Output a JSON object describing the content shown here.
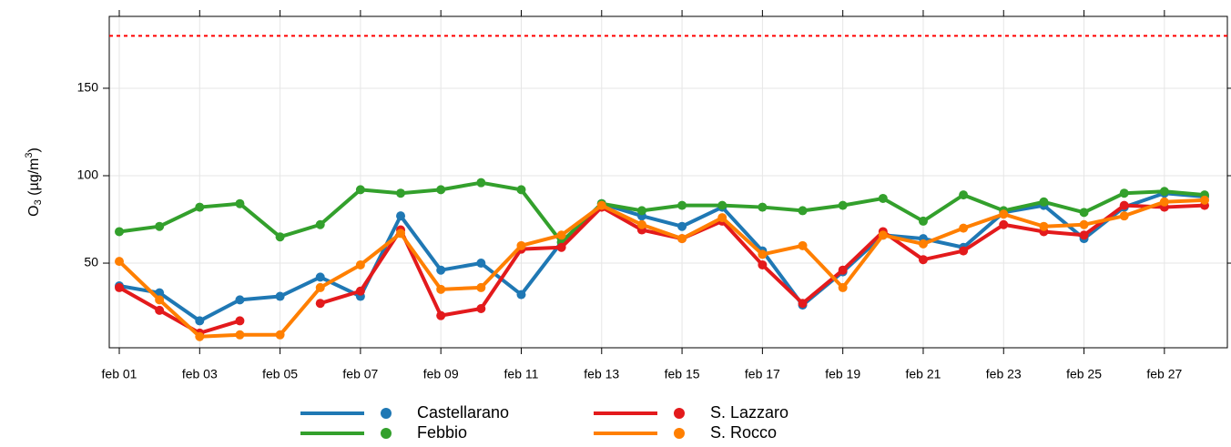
{
  "chart_data": {
    "type": "line",
    "ylabel_parts": [
      "O",
      "3",
      " (µg/m",
      "3",
      ")"
    ],
    "categories": [
      "feb 01",
      null,
      "feb 03",
      null,
      "feb 05",
      null,
      "feb 07",
      null,
      "feb 09",
      null,
      "feb 11",
      null,
      "feb 13",
      null,
      "feb 15",
      null,
      "feb 17",
      null,
      "feb 19",
      null,
      "feb 21",
      null,
      "feb 23",
      null,
      "feb 25",
      null,
      "feb 27",
      null
    ],
    "series": [
      {
        "name": "Castellarano",
        "color": "#1f78b4",
        "values": [
          37,
          33,
          17,
          29,
          31,
          42,
          31,
          77,
          46,
          50,
          32,
          62,
          84,
          77,
          71,
          82,
          57,
          26,
          45,
          66,
          64,
          59,
          79,
          83,
          64,
          82,
          90,
          88
        ]
      },
      {
        "name": "Febbio",
        "color": "#33a02c",
        "values": [
          68,
          71,
          82,
          84,
          65,
          72,
          92,
          90,
          92,
          96,
          92,
          62,
          84,
          80,
          83,
          83,
          82,
          80,
          83,
          87,
          74,
          89,
          80,
          85,
          79,
          90,
          91,
          89
        ]
      },
      {
        "name": "S. Lazzaro",
        "color": "#e31a1c",
        "values": [
          36,
          23,
          10,
          17,
          null,
          27,
          34,
          69,
          20,
          24,
          58,
          59,
          82,
          69,
          64,
          74,
          49,
          27,
          46,
          68,
          52,
          57,
          72,
          68,
          66,
          83,
          82,
          83
        ]
      },
      {
        "name": "S. Rocco",
        "color": "#ff7f00",
        "values": [
          51,
          29,
          8,
          9,
          9,
          36,
          49,
          67,
          35,
          36,
          60,
          66,
          83,
          72,
          64,
          76,
          55,
          60,
          36,
          66,
          61,
          70,
          78,
          71,
          72,
          77,
          85,
          86
        ]
      }
    ],
    "threshold": 180,
    "threshold_color": "#ff0000",
    "ylim": [
      1.6,
      191.1
    ],
    "yticks": [
      50,
      100,
      150
    ],
    "grid": true
  }
}
